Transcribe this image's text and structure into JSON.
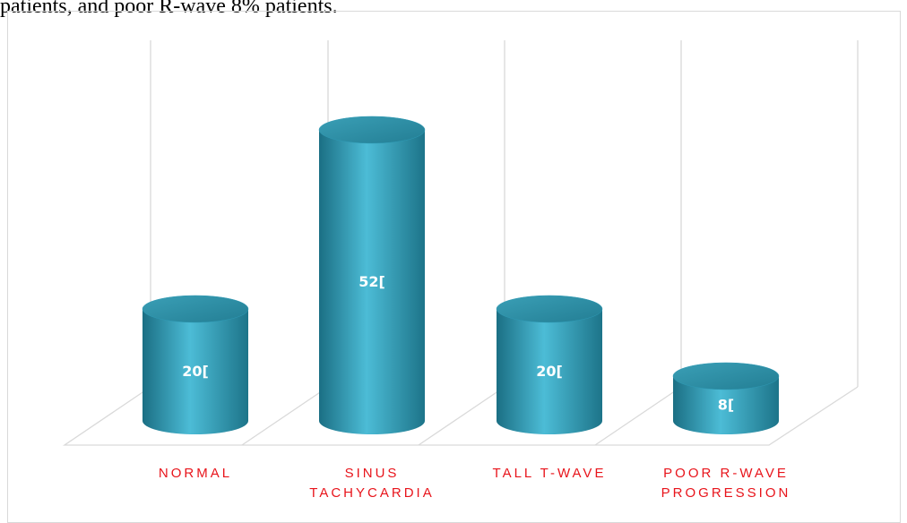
{
  "caption": "patients, and poor R-wave 8% patients.",
  "chart_data": {
    "type": "bar",
    "categories": [
      "NORMAL",
      "SINUS TACHYCARDIA",
      "TALL T-WAVE",
      "POOR R-WAVE PROGRESSION"
    ],
    "values": [
      20,
      52,
      20,
      8
    ],
    "value_labels": [
      "20[",
      "52[",
      "20[",
      "8["
    ],
    "color": "#2e9ab5"
  }
}
